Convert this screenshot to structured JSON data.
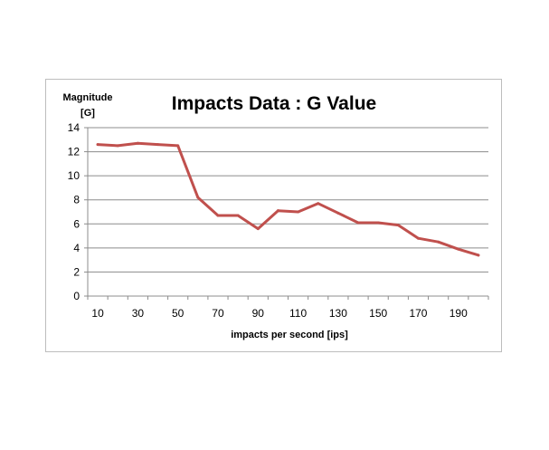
{
  "chart_data": {
    "type": "line",
    "title": "Impacts Data : G Value",
    "ylabel_line1": "Magnitude",
    "ylabel_line2": "[G]",
    "xlabel": "impacts per second [ips]",
    "ylim": [
      0,
      14
    ],
    "yticks": [
      0,
      2,
      4,
      6,
      8,
      10,
      12,
      14
    ],
    "xtick_labels": [
      "10",
      "30",
      "50",
      "70",
      "90",
      "110",
      "130",
      "150",
      "170",
      "190"
    ],
    "x": [
      10,
      20,
      30,
      40,
      50,
      60,
      70,
      80,
      90,
      100,
      110,
      120,
      130,
      140,
      150,
      160,
      170,
      180,
      190,
      200
    ],
    "series": [
      {
        "name": "G Value",
        "color": "#c0504d",
        "values": [
          12.6,
          12.5,
          12.7,
          12.6,
          12.5,
          8.2,
          6.7,
          6.7,
          5.6,
          7.1,
          7.0,
          7.7,
          6.9,
          6.1,
          6.1,
          5.9,
          4.8,
          4.5,
          3.9,
          3.4
        ]
      }
    ],
    "grid": true
  }
}
